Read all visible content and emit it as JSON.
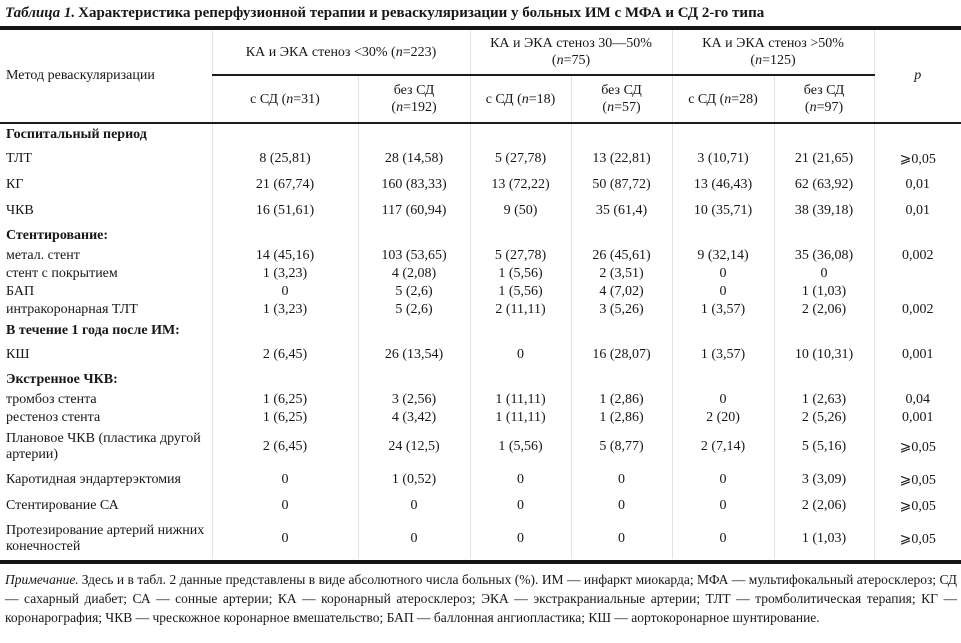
{
  "title": {
    "label": "Таблица 1.",
    "text": "Характеристика реперфузионной терапии и реваскуляризации у больных ИМ с МФА и СД 2-го типа"
  },
  "table": {
    "method_header": "Метод реваскуляризации",
    "p_header": "p",
    "groups": [
      {
        "line1": "КА и ЭКА стеноз <30% (n=223)",
        "line2": ""
      },
      {
        "line1": "КА и ЭКА стеноз 30—50%",
        "line2": "(n=75)"
      },
      {
        "line1": "КА и ЭКА стеноз >50%",
        "line2": "(n=125)"
      }
    ],
    "subheaders": [
      {
        "line1": "с СД (n=31)",
        "line2": ""
      },
      {
        "line1": "без СД",
        "line2": "(n=192)"
      },
      {
        "line1": "с СД (n=18)",
        "line2": ""
      },
      {
        "line1": "без СД",
        "line2": "(n=57)"
      },
      {
        "line1": "с СД (n=28)",
        "line2": ""
      },
      {
        "line1": "без СД",
        "line2": "(n=97)"
      }
    ],
    "rows": [
      {
        "type": "section",
        "label": "Госпитальный период",
        "values": [
          "",
          "",
          "",
          "",
          "",
          ""
        ],
        "p": ""
      },
      {
        "type": "row",
        "label": "ТЛТ",
        "values": [
          "8 (25,81)",
          "28 (14,58)",
          "5 (27,78)",
          "13 (22,81)",
          "3 (10,71)",
          "21 (21,65)"
        ],
        "p": "⩾0,05"
      },
      {
        "type": "row",
        "label": "КГ",
        "values": [
          "21 (67,74)",
          "160 (83,33)",
          "13 (72,22)",
          "50 (87,72)",
          "13 (46,43)",
          "62 (63,92)"
        ],
        "p": "0,01"
      },
      {
        "type": "row",
        "label": "ЧКВ",
        "values": [
          "16 (51,61)",
          "117 (60,94)",
          "9 (50)",
          "35 (61,4)",
          "10 (35,71)",
          "38 (39,18)"
        ],
        "p": "0,01"
      },
      {
        "type": "section",
        "label": "Стентирование:",
        "values": [
          "",
          "",
          "",
          "",
          "",
          ""
        ],
        "p": ""
      },
      {
        "type": "compact",
        "label": "метал. стент",
        "values": [
          "14 (45,16)",
          "103 (53,65)",
          "5 (27,78)",
          "26 (45,61)",
          "9 (32,14)",
          "35 (36,08)"
        ],
        "p": "0,002"
      },
      {
        "type": "compact",
        "label": "стент с покрытием",
        "values": [
          "1 (3,23)",
          "4 (2,08)",
          "1 (5,56)",
          "2 (3,51)",
          "0",
          "0"
        ],
        "p": ""
      },
      {
        "type": "compact",
        "label": "БАП",
        "values": [
          "0",
          "5 (2,6)",
          "1 (5,56)",
          "4 (7,02)",
          "0",
          "1 (1,03)"
        ],
        "p": ""
      },
      {
        "type": "compact",
        "label": "интракоронарная ТЛТ",
        "values": [
          "1 (3,23)",
          "5 (2,6)",
          "2 (11,11)",
          "3 (5,26)",
          "1 (3,57)",
          "2 (2,06)"
        ],
        "p": "0,002"
      },
      {
        "type": "section",
        "label": "В течение 1 года после ИМ:",
        "values": [
          "",
          "",
          "",
          "",
          "",
          ""
        ],
        "p": ""
      },
      {
        "type": "row",
        "label": "КШ",
        "values": [
          "2 (6,45)",
          "26 (13,54)",
          "0",
          "16 (28,07)",
          "1 (3,57)",
          "10 (10,31)"
        ],
        "p": "0,001"
      },
      {
        "type": "section",
        "label": "Экстренное ЧКВ:",
        "values": [
          "",
          "",
          "",
          "",
          "",
          ""
        ],
        "p": ""
      },
      {
        "type": "compact",
        "label": "тромбоз стента",
        "values": [
          "1 (6,25)",
          "3 (2,56)",
          "1 (11,11)",
          "1 (2,86)",
          "0",
          "1 (2,63)"
        ],
        "p": "0,04"
      },
      {
        "type": "compact",
        "label": "рестеноз стента",
        "values": [
          "1 (6,25)",
          "4 (3,42)",
          "1 (11,11)",
          "1 (2,86)",
          "2 (20)",
          "2 (5,26)"
        ],
        "p": "0,001"
      },
      {
        "type": "row2",
        "label": "Плановое ЧКВ (пластика другой артерии)",
        "values": [
          "2 (6,45)",
          "24 (12,5)",
          "1 (5,56)",
          "5 (8,77)",
          "2 (7,14)",
          "5 (5,16)"
        ],
        "p": "⩾0,05"
      },
      {
        "type": "row",
        "label": "Каротидная эндартерэктомия",
        "values": [
          "0",
          "1 (0,52)",
          "0",
          "0",
          "0",
          "3 (3,09)"
        ],
        "p": "⩾0,05"
      },
      {
        "type": "row",
        "label": "Стентирование СА",
        "values": [
          "0",
          "0",
          "0",
          "0",
          "0",
          "2 (2,06)"
        ],
        "p": "⩾0,05"
      },
      {
        "type": "row2",
        "label": "Протезирование артерий нижних конечностей",
        "values": [
          "0",
          "0",
          "0",
          "0",
          "0",
          "1 (1,03)"
        ],
        "p": "⩾0,05"
      }
    ]
  },
  "note": {
    "label": "Примечание.",
    "text": "Здесь и в табл. 2 данные представлены в виде абсолютного числа больных (%). ИМ — инфаркт миокарда; МФА — мультифокальный атеросклероз; СД — сахарный диабет; СА — сонные артерии; КА — коронарный атеросклероз; ЭКА — экстракраниальные артерии; ТЛТ — тромболитическая терапия; КГ — коронарография; ЧКВ — чрескожное коронарное вмешательство; БАП — баллонная ангиопластика; КШ — аортокоронарное шунтирование."
  }
}
